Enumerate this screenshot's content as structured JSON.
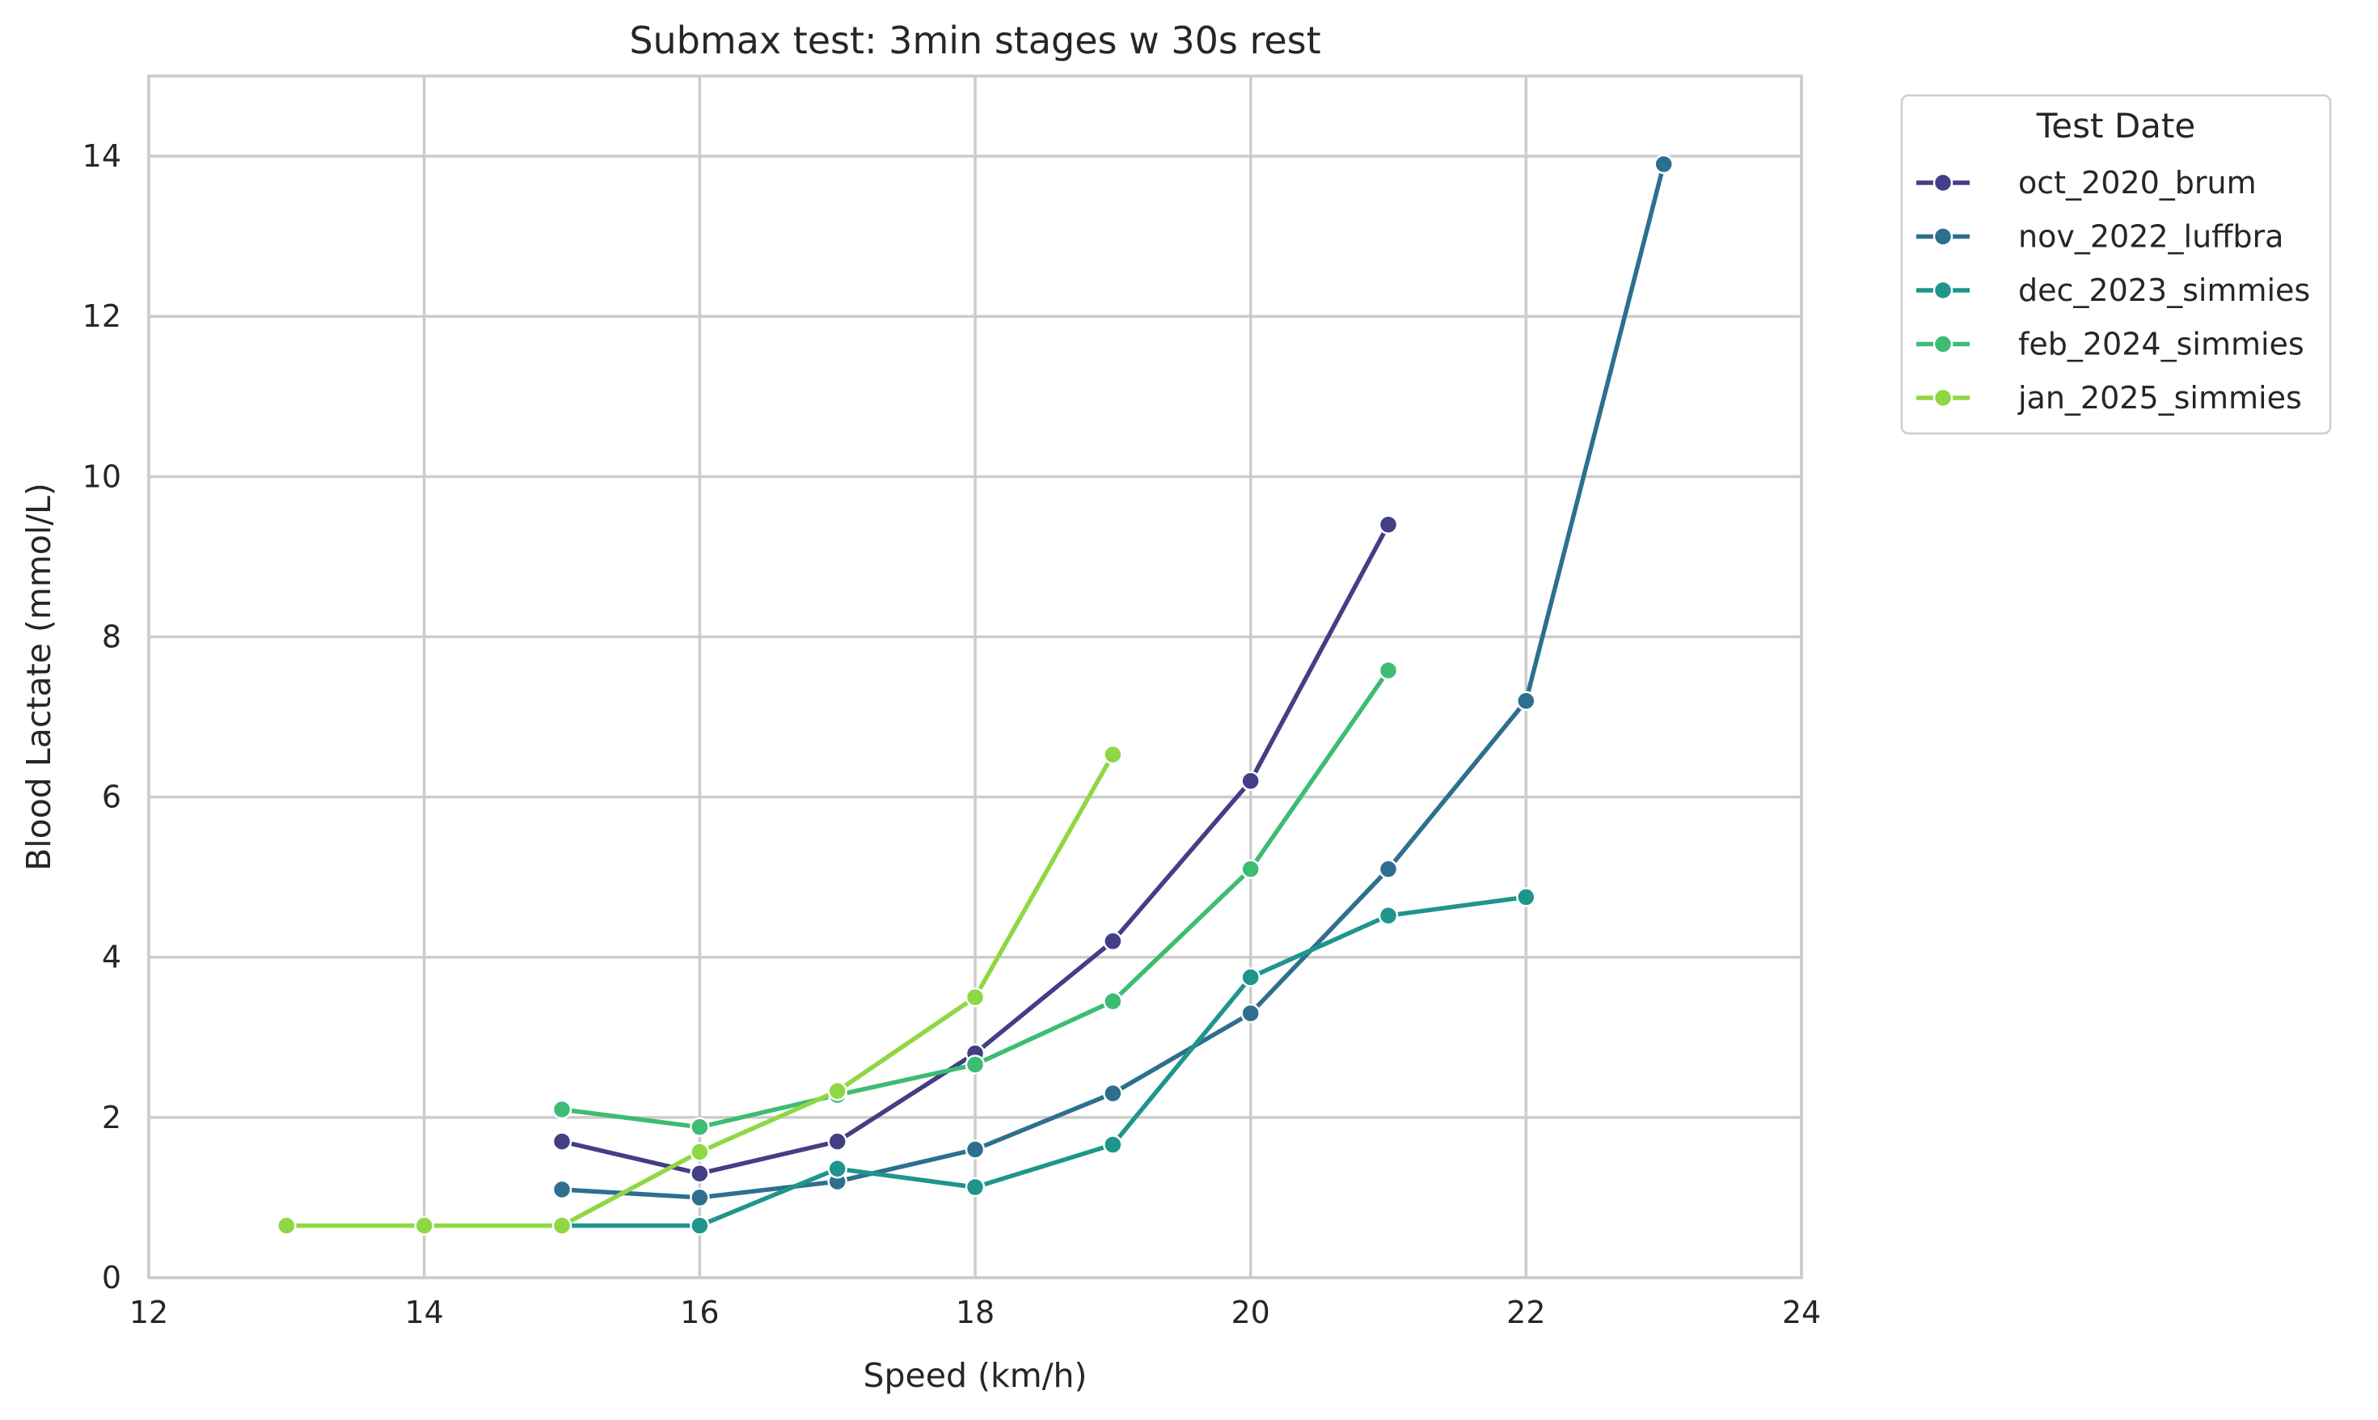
{
  "chart_data": {
    "type": "line",
    "title": "Submax test: 3min stages w 30s rest",
    "xlabel": "Speed (km/h)",
    "ylabel": "Blood Lactate (mmol/L)",
    "xlim": [
      12,
      24
    ],
    "ylim": [
      0,
      15
    ],
    "xticks": [
      12,
      14,
      16,
      18,
      20,
      22,
      24
    ],
    "yticks": [
      0,
      2,
      4,
      6,
      8,
      10,
      12,
      14
    ],
    "grid": true,
    "legend": {
      "title": "Test Date",
      "placement": "outside-top-right"
    },
    "series": [
      {
        "name": "oct_2020_brum",
        "color": "#433e85",
        "x": [
          15,
          16,
          17,
          18,
          19,
          20,
          21
        ],
        "y": [
          1.7,
          1.3,
          1.7,
          2.8,
          4.2,
          6.2,
          9.4
        ]
      },
      {
        "name": "nov_2022_luffbra",
        "color": "#2d6f8e",
        "x": [
          15,
          16,
          17,
          18,
          19,
          20,
          21,
          22,
          23
        ],
        "y": [
          1.1,
          1.0,
          1.2,
          1.6,
          2.3,
          3.3,
          5.1,
          7.2,
          13.9
        ]
      },
      {
        "name": "dec_2023_simmies",
        "color": "#1f958b",
        "x": [
          15,
          16,
          17,
          18,
          19,
          20,
          21,
          22
        ],
        "y": [
          0.65,
          0.65,
          1.36,
          1.13,
          1.66,
          3.75,
          4.52,
          4.75
        ]
      },
      {
        "name": "feb_2024_simmies",
        "color": "#3dbc74",
        "x": [
          15,
          16,
          17,
          18,
          19,
          20,
          21
        ],
        "y": [
          2.1,
          1.88,
          2.28,
          2.66,
          3.45,
          5.1,
          7.58
        ]
      },
      {
        "name": "jan_2025_simmies",
        "color": "#8fd744",
        "x": [
          13,
          14,
          15,
          16,
          17,
          18,
          19
        ],
        "y": [
          0.65,
          0.65,
          0.65,
          1.57,
          2.33,
          3.5,
          6.53
        ]
      }
    ]
  }
}
